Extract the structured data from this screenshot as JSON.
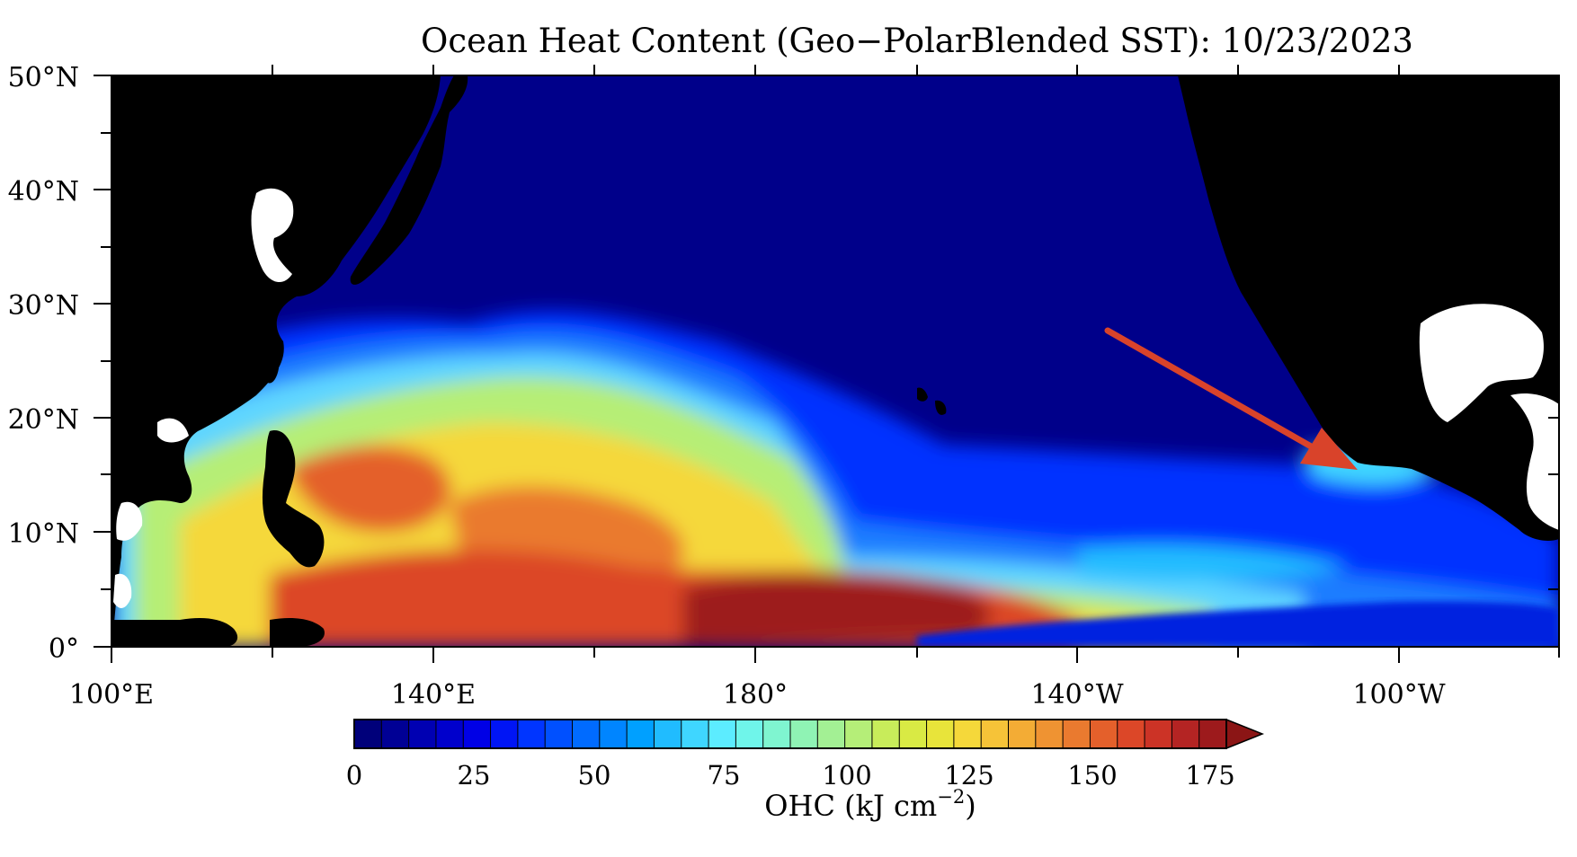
{
  "title": "Ocean Heat Content (Geo−PolarBlended SST): 10/23/2023",
  "map": {
    "lat_labels": [
      "50°N",
      "40°N",
      "30°N",
      "20°N",
      "10°N",
      "0°"
    ],
    "lon_labels": [
      "100°E",
      "140°E",
      "180°",
      "140°W",
      "100°W"
    ],
    "land_color": "#000000",
    "annotation": {
      "type": "arrow",
      "color": "#d9432a"
    }
  },
  "colorbar": {
    "ticks": [
      "0",
      "25",
      "50",
      "75",
      "100",
      "125",
      "150",
      "175"
    ],
    "label_main": "OHC (kJ cm",
    "label_exp": "−2",
    "label_close": ")",
    "colors": [
      "#00007a",
      "#000095",
      "#0000b2",
      "#0000cc",
      "#0000e6",
      "#0015f5",
      "#0035ff",
      "#0050ff",
      "#006bff",
      "#0085ff",
      "#00a0ff",
      "#20bcff",
      "#3fd6ff",
      "#5cecff",
      "#6ff5ea",
      "#7ff5d0",
      "#8ff3b4",
      "#a3f094",
      "#b5ee78",
      "#c8ec5a",
      "#d9ea44",
      "#e8e43a",
      "#f5d83a",
      "#f6c338",
      "#f3ac35",
      "#ef9332",
      "#ea7a2f",
      "#e4602b",
      "#dc4728",
      "#cc3326",
      "#b42423",
      "#9d1a1c"
    ],
    "extend_color": "#8b1515"
  }
}
